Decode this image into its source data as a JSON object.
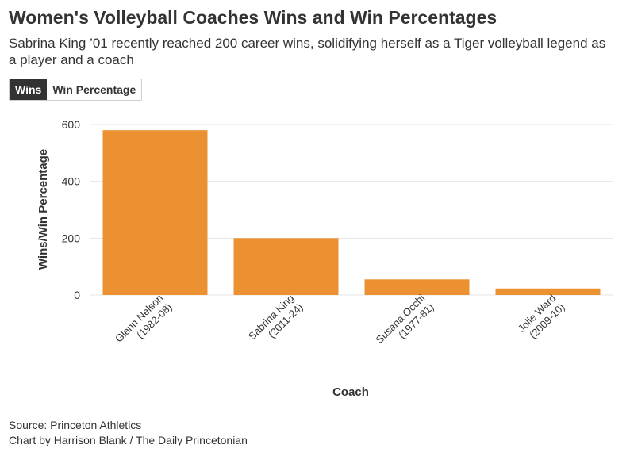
{
  "header": {
    "title": "Women's Volleyball Coaches Wins and Win Percentages",
    "subtitle": "Sabrina King ’01 recently reached 200 career wins, solidifying herself as a Tiger volleyball legend as a player and a coach"
  },
  "toggle": {
    "wins_label": "Wins",
    "win_pct_label": "Win Percentage",
    "active": "Wins"
  },
  "colors": {
    "bar": "#ec9131",
    "grid": "#e6e6e6",
    "axis_text": "#333333"
  },
  "chart_data": {
    "type": "bar",
    "title": "Women's Volleyball Coaches Wins and Win Percentages",
    "xlabel": "Coach",
    "ylabel": "Wins/Win Percentage",
    "categories": [
      [
        "Glenn Nelson",
        "(1982-08)"
      ],
      [
        "Sabrina King",
        "(2011-24)"
      ],
      [
        "Susana Occhi",
        "(1977-81)"
      ],
      [
        "Jolie Ward",
        "(2009-10)"
      ]
    ],
    "values": [
      580,
      200,
      55,
      23
    ],
    "ylim": [
      0,
      600
    ],
    "yticks": [
      0,
      200,
      400,
      600
    ],
    "grid": true
  },
  "footer": {
    "source": "Source: Princeton Athletics",
    "credit": "Chart by Harrison Blank / The Daily Princetonian"
  }
}
